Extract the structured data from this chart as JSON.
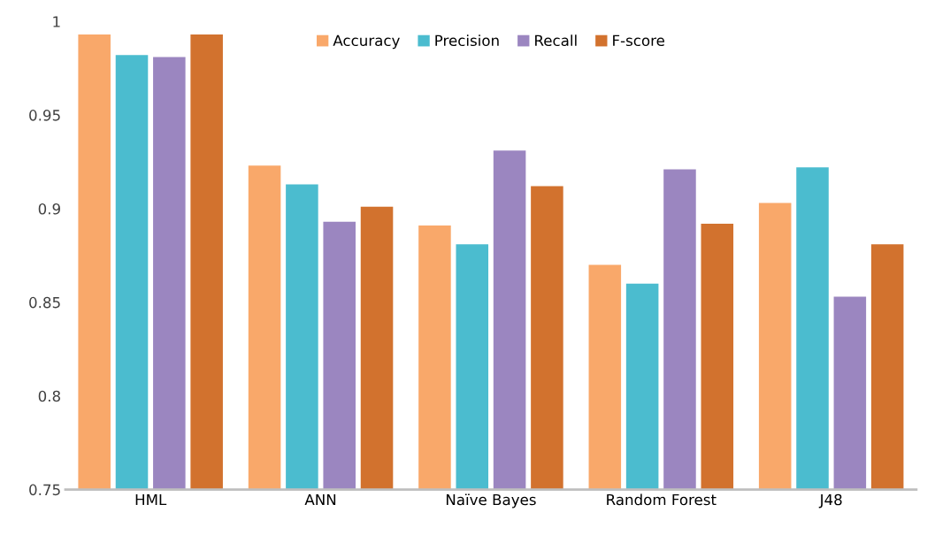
{
  "chart_data": {
    "type": "bar",
    "categories": [
      "HML",
      "ANN",
      "Naïve Bayes",
      "Random Forest",
      "J48"
    ],
    "series": [
      {
        "name": "Accuracy",
        "color": "#f9a86a",
        "values": [
          0.993,
          0.923,
          0.891,
          0.87,
          0.903
        ]
      },
      {
        "name": "Precision",
        "color": "#4bbccf",
        "values": [
          0.982,
          0.913,
          0.881,
          0.86,
          0.922
        ]
      },
      {
        "name": "Recall",
        "color": "#9b86c0",
        "values": [
          0.981,
          0.893,
          0.931,
          0.921,
          0.853
        ]
      },
      {
        "name": "F-score",
        "color": "#d2722e",
        "values": [
          0.993,
          0.901,
          0.912,
          0.892,
          0.881
        ]
      }
    ],
    "ylim": [
      0.75,
      1
    ],
    "yticks": [
      0.75,
      {
        "value": 0.8,
        "label": "0.8"
      },
      0.85,
      {
        "value": 0.9,
        "label": "0.9"
      },
      0.95,
      {
        "value": 1,
        "label": "1"
      }
    ],
    "grid": false,
    "legend": "top"
  }
}
